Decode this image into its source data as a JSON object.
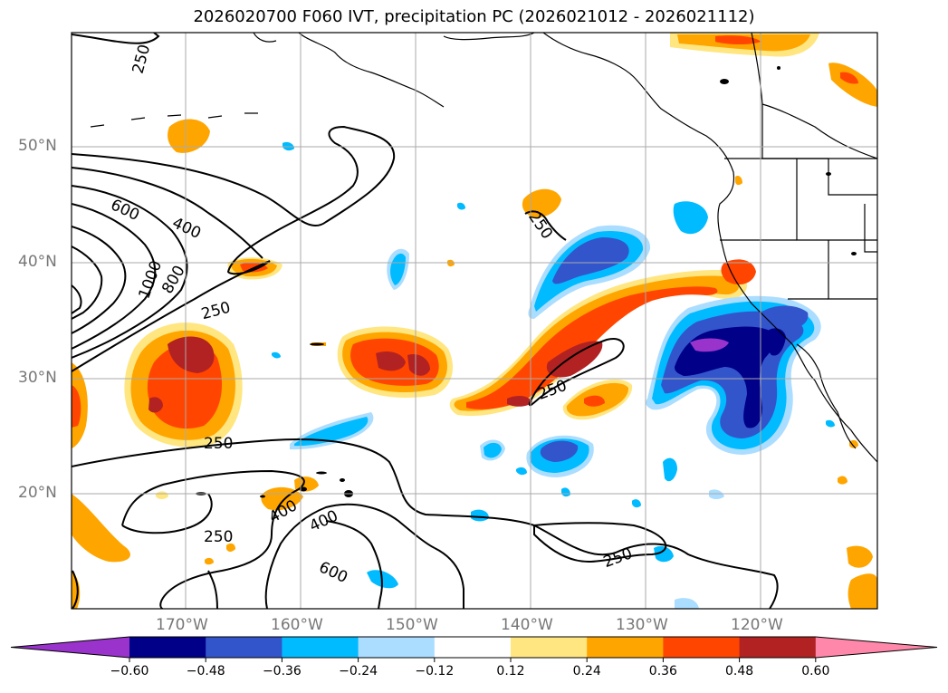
{
  "title": "2026020700 F060 IVT, precipitation PC (2026021012 - 2026021112)",
  "lat_labels": [
    "50°N",
    "40°N",
    "30°N",
    "20°N"
  ],
  "lon_labels": [
    "170°W",
    "160°W",
    "150°W",
    "140°W",
    "130°W",
    "120°W"
  ],
  "contour_labels": [
    "250",
    "600",
    "400",
    "1000",
    "800",
    "250",
    "250",
    "250",
    "400",
    "400",
    "250",
    "600",
    "250"
  ],
  "colorbar": {
    "ticks": [
      "−0.60",
      "−0.48",
      "−0.36",
      "−0.24",
      "−0.12",
      "0.12",
      "0.24",
      "0.36",
      "0.48",
      "0.60"
    ],
    "colors": [
      "#9933cc",
      "#000088",
      "#3355cc",
      "#00bbff",
      "#aaddff",
      "#ffffff",
      "#ffe680",
      "#ffa500",
      "#ff4500",
      "#b22222",
      "#ff88aa"
    ]
  }
}
